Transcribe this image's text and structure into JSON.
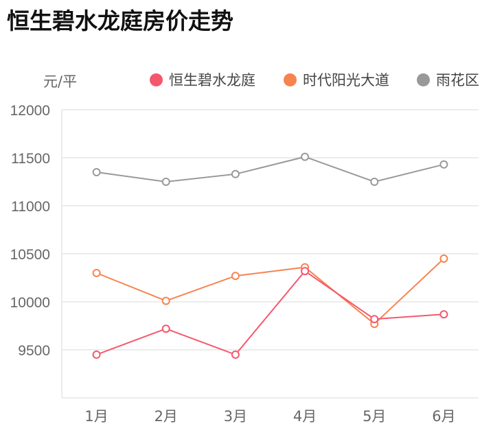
{
  "title": "恒生碧水龙庭房价走势",
  "y_unit": "元/平",
  "legend": [
    {
      "label": "恒生碧水龙庭",
      "color": "#f5576c",
      "icon": "circle-icon"
    },
    {
      "label": "时代阳光大道",
      "color": "#f7834f",
      "icon": "circle-icon"
    },
    {
      "label": "雨花区",
      "color": "#999999",
      "icon": "circle-icon"
    }
  ],
  "chart_data": {
    "type": "line",
    "title": "恒生碧水龙庭房价走势",
    "xlabel": "",
    "ylabel": "元/平",
    "categories": [
      "1月",
      "2月",
      "3月",
      "4月",
      "5月",
      "6月"
    ],
    "ylim": [
      9000,
      12000
    ],
    "yticks": [
      9500,
      10000,
      10500,
      11000,
      11500,
      12000
    ],
    "grid": true,
    "legend_position": "top-right",
    "series": [
      {
        "name": "恒生碧水龙庭",
        "color": "#f5576c",
        "values": [
          9450,
          9720,
          9450,
          10320,
          9820,
          9870
        ]
      },
      {
        "name": "时代阳光大道",
        "color": "#f7834f",
        "values": [
          10300,
          10010,
          10270,
          10360,
          9770,
          10450
        ]
      },
      {
        "name": "雨花区",
        "color": "#999999",
        "values": [
          11350,
          11250,
          11330,
          11510,
          11250,
          11430
        ]
      }
    ]
  }
}
